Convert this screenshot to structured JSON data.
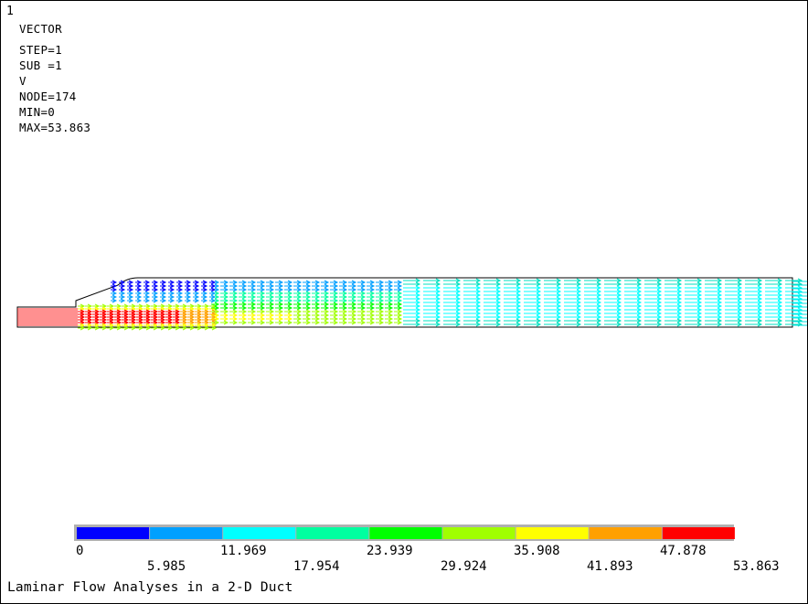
{
  "window_number": "1",
  "info_lines": {
    "type": "VECTOR",
    "step": "STEP=1",
    "sub": "SUB =1",
    "item": "V",
    "node": "NODE=174",
    "min": "MIN=0",
    "max": "MAX=53.863"
  },
  "legend": {
    "colors": [
      "#0000ff",
      "#00a0ff",
      "#00ffff",
      "#00ffa0",
      "#00ff00",
      "#a0ff00",
      "#ffff00",
      "#ffa000",
      "#ff0000"
    ],
    "values_top": [
      "0",
      "11.969",
      "23.939",
      "35.908",
      "47.878"
    ],
    "values_bottom": [
      "5.985",
      "17.954",
      "29.924",
      "41.893",
      "53.863"
    ]
  },
  "caption": "Laminar Flow Analyses in a 2-D Duct"
}
